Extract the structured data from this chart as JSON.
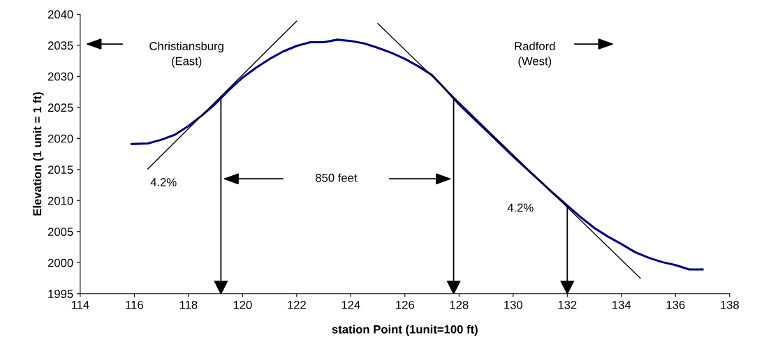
{
  "chart_data": {
    "type": "line",
    "xlabel": "station Point (1unit=100 ft)",
    "ylabel": "Elevation (1 unit = 1 ft)",
    "xlim": [
      114,
      138
    ],
    "xticks": [
      114,
      116,
      118,
      120,
      122,
      124,
      126,
      128,
      130,
      132,
      134,
      136,
      138
    ],
    "ylim": [
      1995,
      2040
    ],
    "yticks": [
      1995,
      2000,
      2005,
      2010,
      2015,
      2020,
      2025,
      2030,
      2035,
      2040
    ],
    "grid": false,
    "legend": false,
    "marker": "none",
    "line_style": "solid",
    "series": [
      {
        "color": "#000080",
        "x": [
          115.9,
          116.5,
          117,
          117.5,
          118,
          118.5,
          119,
          119.5,
          120,
          120.5,
          121,
          121.5,
          122,
          122.5,
          123,
          123.5,
          124,
          124.5,
          125,
          125.5,
          126,
          126.5,
          127,
          127.5,
          128,
          128.5,
          129,
          129.5,
          130,
          130.5,
          131,
          131.5,
          132,
          132.5,
          133,
          133.5,
          134,
          134.5,
          135,
          135.5,
          136,
          136.5,
          137
        ],
        "values": [
          2019.1,
          2019.2,
          2019.8,
          2020.6,
          2022,
          2023.7,
          2025.6,
          2027.8,
          2029.8,
          2031.4,
          2032.8,
          2034,
          2034.9,
          2035.5,
          2035.5,
          2035.9,
          2035.7,
          2035.3,
          2034.6,
          2033.8,
          2032.8,
          2031.6,
          2030.2,
          2027.9,
          2025.5,
          2023.4,
          2021.3,
          2019.2,
          2017.1,
          2015.1,
          2013.1,
          2011.1,
          2009.2,
          2007.3,
          2005.6,
          2004.2,
          2003.0,
          2001.7,
          2000.8,
          2000.1,
          1999.6,
          1998.9,
          1998.9
        ]
      },
      {
        "color": "#000000",
        "x": [
          116.5,
          122.0
        ],
        "values": [
          2015.1,
          2038.9
        ]
      },
      {
        "color": "#000000",
        "x": [
          125.0,
          134.7
        ],
        "values": [
          2038.5,
          1997.5
        ]
      }
    ],
    "ref_lines": [
      {
        "axis": "x",
        "value": 119.2,
        "color": "#000000"
      },
      {
        "axis": "x",
        "value": 127.8,
        "color": "#000000"
      },
      {
        "axis": "x",
        "value": 132.0,
        "color": "#000000"
      }
    ],
    "annotations": [
      "Christiansburg\n(East)",
      "Radford\n(West)",
      "850 feet",
      "4.2%",
      "4.2%"
    ]
  }
}
